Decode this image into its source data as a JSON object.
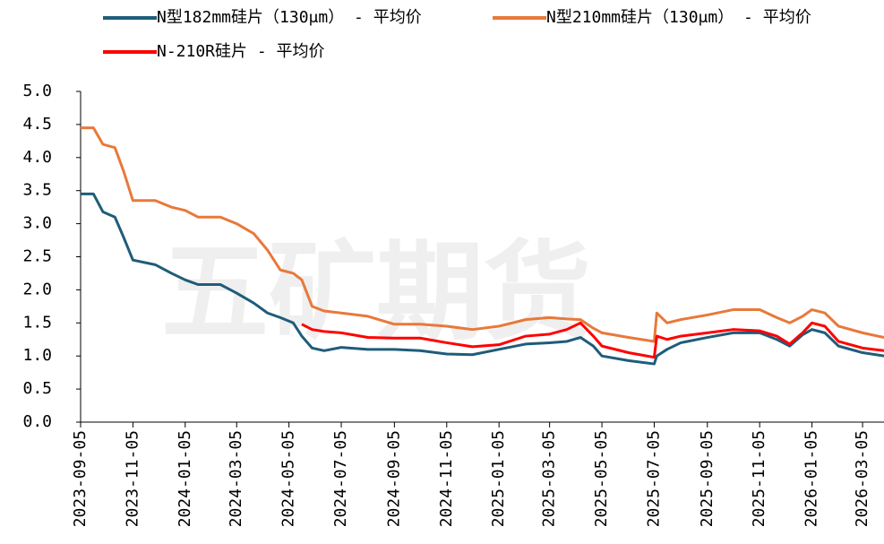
{
  "chart_data": {
    "type": "line",
    "watermark": "五矿期货",
    "x": [
      "2023-09-05",
      "2023-09-20",
      "2023-10-01",
      "2023-10-15",
      "2023-10-25",
      "2023-11-05",
      "2023-12-01",
      "2023-12-20",
      "2024-01-05",
      "2024-01-20",
      "2024-02-15",
      "2024-03-05",
      "2024-03-25",
      "2024-04-10",
      "2024-04-25",
      "2024-05-10",
      "2024-05-20",
      "2024-06-01",
      "2024-06-15",
      "2024-07-05",
      "2024-08-05",
      "2024-09-05",
      "2024-10-05",
      "2024-11-05",
      "2024-12-05",
      "2025-01-05",
      "2025-02-05",
      "2025-03-05",
      "2025-03-25",
      "2025-04-10",
      "2025-04-25",
      "2025-05-05",
      "2025-06-05",
      "2025-07-05",
      "2025-07-08",
      "2025-07-20",
      "2025-08-05",
      "2025-09-05",
      "2025-10-05",
      "2025-11-05",
      "2025-11-25",
      "2025-12-10",
      "2025-12-25",
      "2026-01-05",
      "2026-01-20",
      "2026-02-05",
      "2026-03-05",
      "2026-03-30"
    ],
    "series": [
      {
        "name": "N型182mm硅片（130μm） - 平均价",
        "color": "#1f5c7a",
        "values": [
          3.45,
          3.45,
          3.18,
          3.1,
          2.8,
          2.45,
          2.38,
          2.25,
          2.15,
          2.08,
          2.08,
          1.95,
          1.8,
          1.65,
          1.58,
          1.5,
          1.3,
          1.12,
          1.08,
          1.13,
          1.1,
          1.1,
          1.08,
          1.03,
          1.02,
          1.1,
          1.18,
          1.2,
          1.22,
          1.28,
          1.15,
          1.0,
          0.93,
          0.88,
          1.0,
          1.1,
          1.2,
          1.28,
          1.35,
          1.35,
          1.25,
          1.15,
          1.32,
          1.4,
          1.35,
          1.15,
          1.05,
          1.0
        ]
      },
      {
        "name": "N型210mm硅片（130μm） - 平均价",
        "color": "#e8793a",
        "values": [
          4.45,
          4.45,
          4.2,
          4.15,
          3.8,
          3.35,
          3.35,
          3.25,
          3.2,
          3.1,
          3.1,
          3.0,
          2.85,
          2.6,
          2.3,
          2.25,
          2.15,
          1.75,
          1.68,
          1.65,
          1.6,
          1.48,
          1.48,
          1.45,
          1.4,
          1.45,
          1.55,
          1.58,
          1.56,
          1.55,
          1.42,
          1.35,
          1.28,
          1.22,
          1.65,
          1.5,
          1.55,
          1.62,
          1.7,
          1.7,
          1.58,
          1.5,
          1.6,
          1.7,
          1.65,
          1.45,
          1.35,
          1.28
        ]
      },
      {
        "name": "N-210R硅片 - 平均价",
        "color": "#ff0000",
        "values": [
          null,
          null,
          null,
          null,
          null,
          null,
          null,
          null,
          null,
          null,
          null,
          null,
          null,
          null,
          null,
          null,
          1.48,
          1.4,
          1.37,
          1.35,
          1.28,
          1.27,
          1.27,
          1.2,
          1.14,
          1.17,
          1.3,
          1.33,
          1.4,
          1.5,
          1.3,
          1.15,
          1.05,
          0.98,
          1.3,
          1.25,
          1.3,
          1.35,
          1.4,
          1.38,
          1.3,
          1.18,
          1.35,
          1.5,
          1.45,
          1.22,
          1.12,
          1.08
        ]
      }
    ],
    "xlim": [
      "2023-09-05",
      "2026-03-30"
    ],
    "xticks": [
      "2023-09-05",
      "2023-11-05",
      "2024-01-05",
      "2024-03-05",
      "2024-05-05",
      "2024-07-05",
      "2024-09-05",
      "2024-11-05",
      "2025-01-05",
      "2025-03-05",
      "2025-05-05",
      "2025-07-05",
      "2025-09-05",
      "2025-11-05",
      "2026-01-05",
      "2026-03-05"
    ],
    "ylim": [
      0,
      5
    ],
    "yticks": [
      {
        "value": 0,
        "label": "0.0"
      },
      0.5,
      {
        "value": 1,
        "label": "1.0"
      },
      1.5,
      {
        "value": 2,
        "label": "2.0"
      },
      2.5,
      {
        "value": 3,
        "label": "3.0"
      },
      3.5,
      {
        "value": 4,
        "label": "4.0"
      },
      4.5,
      {
        "value": 5,
        "label": "5.0"
      }
    ],
    "legend": "top"
  }
}
